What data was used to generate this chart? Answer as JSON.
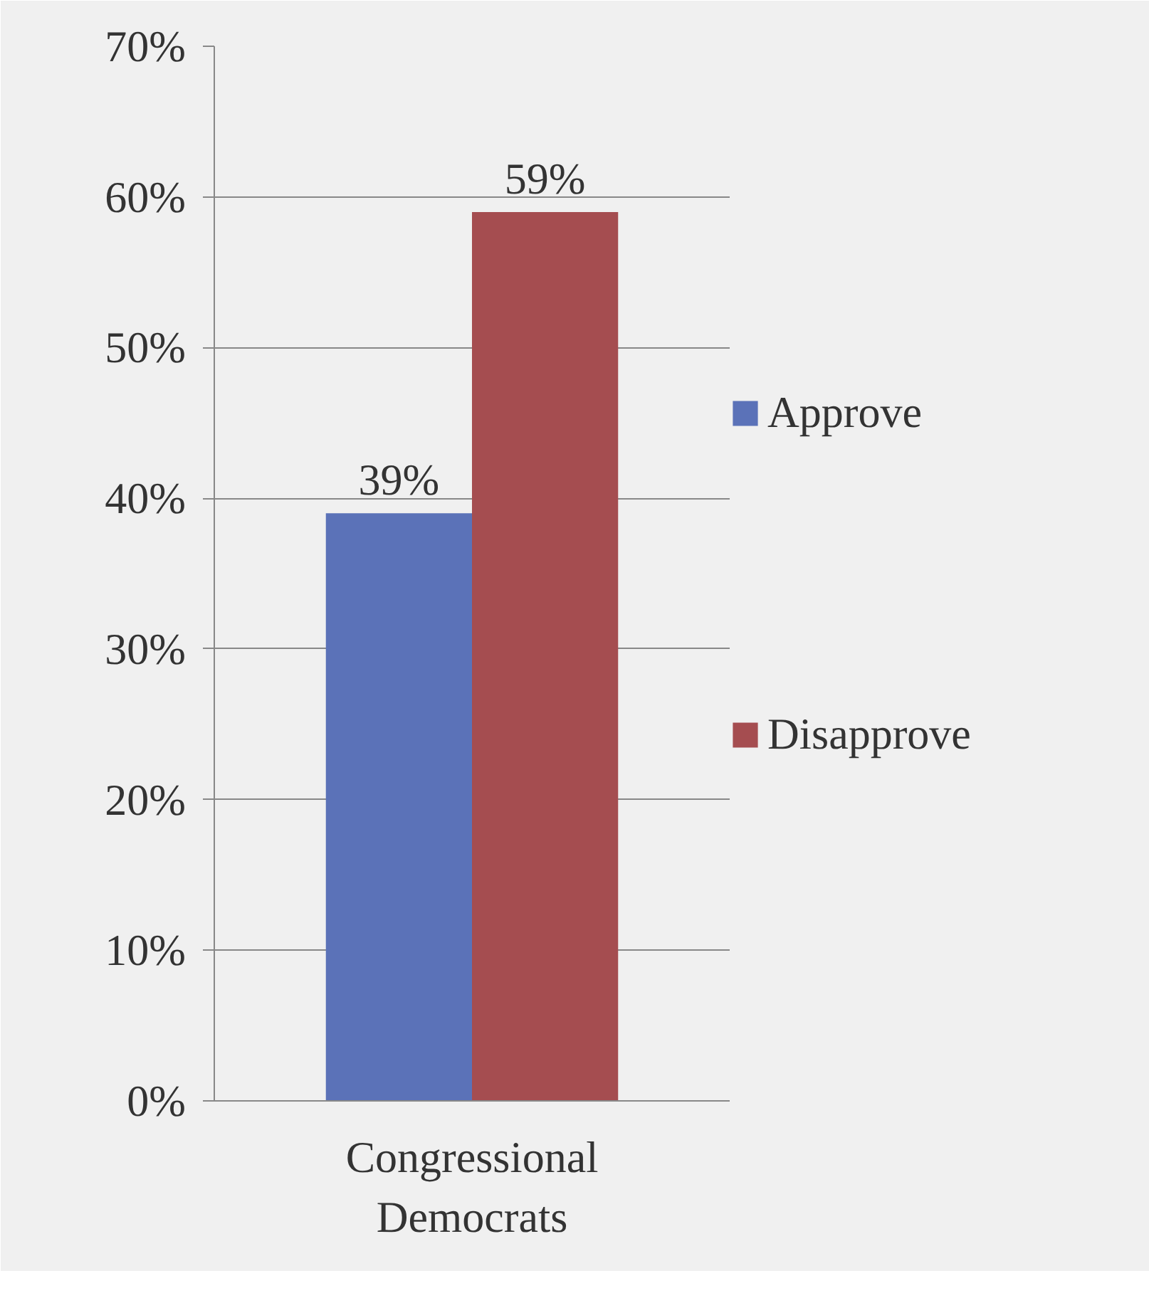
{
  "chart_data": {
    "type": "bar",
    "categories": [
      "Congressional Democrats"
    ],
    "series": [
      {
        "name": "Approve",
        "color": "#5b72b8",
        "values": [
          39
        ],
        "value_labels": [
          "39%"
        ]
      },
      {
        "name": "Disapprove",
        "color": "#a54d50",
        "values": [
          59
        ],
        "value_labels": [
          "59%"
        ]
      }
    ],
    "ylim": [
      0,
      70
    ],
    "yticks": [
      {
        "value": 0,
        "label": "0%"
      },
      {
        "value": 10,
        "label": "10%"
      },
      {
        "value": 20,
        "label": "20%"
      },
      {
        "value": 30,
        "label": "30%"
      },
      {
        "value": 40,
        "label": "40%"
      },
      {
        "value": 50,
        "label": "50%"
      },
      {
        "value": 60,
        "label": "60%"
      },
      {
        "value": 70,
        "label": "70%"
      }
    ],
    "grid": "y",
    "legend": "right"
  }
}
